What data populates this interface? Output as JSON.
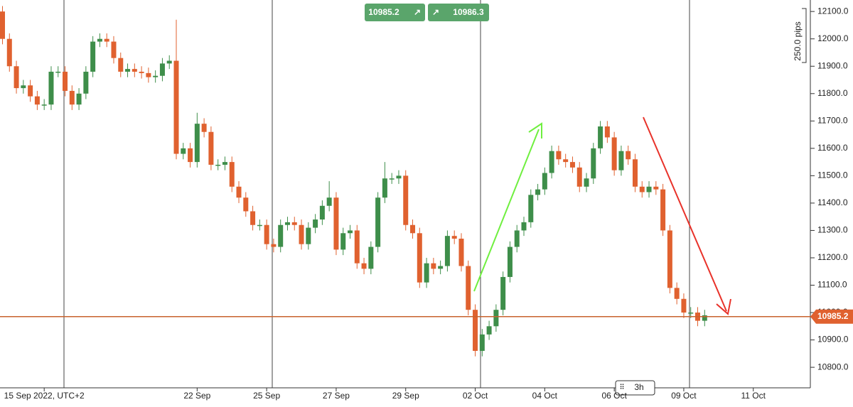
{
  "chart_data": {
    "type": "candlestick",
    "categories": [
      null,
      null,
      null,
      null,
      null,
      null,
      "15 Sep 2022, UTC+2",
      null,
      null,
      null,
      null,
      null,
      null,
      null,
      null,
      null,
      null,
      null,
      null,
      null,
      null,
      null,
      null,
      null,
      null,
      null,
      null,
      null,
      "22 Sep",
      null,
      null,
      null,
      null,
      null,
      null,
      null,
      null,
      null,
      "25 Sep",
      null,
      null,
      null,
      null,
      null,
      null,
      null,
      null,
      null,
      "27 Sep",
      null,
      null,
      null,
      null,
      null,
      null,
      null,
      null,
      null,
      "29 Sep",
      null,
      null,
      null,
      null,
      null,
      null,
      null,
      null,
      null,
      "02 Oct",
      null,
      null,
      null,
      null,
      null,
      null,
      null,
      null,
      null,
      "04 Oct",
      null,
      null,
      null,
      null,
      null,
      null,
      null,
      null,
      null,
      "06 Oct",
      null,
      null,
      null,
      null,
      null,
      null,
      null,
      null,
      null,
      "09 Oct",
      null,
      null,
      null,
      null,
      null,
      null,
      null,
      null,
      null,
      "11 Oct",
      null
    ],
    "open": [
      12100,
      12000,
      11900,
      11820,
      11830,
      11790,
      11760,
      11760,
      11880,
      11880,
      11810,
      11760,
      11800,
      11880,
      11990,
      12000,
      11990,
      11930,
      11880,
      11890,
      11880,
      11875,
      11860,
      11865,
      11910,
      11920,
      11580,
      11600,
      11550,
      11690,
      11660,
      11540,
      11540,
      11550,
      11460,
      11420,
      11370,
      11320,
      11320,
      11250,
      11240,
      11320,
      11330,
      11320,
      11250,
      11310,
      11340,
      11390,
      11420,
      11230,
      11290,
      11300,
      11180,
      11160,
      11240,
      11420,
      11490,
      11490,
      11500,
      11320,
      11290,
      11110,
      11180,
      11160,
      11170,
      11280,
      11270,
      11170,
      11010,
      10860,
      10920,
      10950,
      11010,
      11130,
      11240,
      11300,
      11330,
      11430,
      11450,
      11510,
      11590,
      11560,
      11550,
      11530,
      11460,
      11490,
      11600,
      11680,
      11640,
      11520,
      11590,
      11560,
      11460,
      11440,
      11460,
      11450,
      11300,
      11090,
      11050,
      11000,
      11000,
      10970,
      null,
      null,
      null,
      null,
      null,
      null,
      null,
      null
    ],
    "high": [
      12120,
      12020,
      11920,
      11850,
      11850,
      11810,
      11780,
      11900,
      11900,
      11900,
      11830,
      11820,
      11900,
      12010,
      12020,
      12020,
      12010,
      11950,
      11910,
      11910,
      11900,
      11895,
      11885,
      11930,
      11940,
      12070,
      11620,
      11620,
      11730,
      11710,
      11680,
      11560,
      11570,
      11570,
      11480,
      11440,
      11390,
      11340,
      11340,
      11270,
      11340,
      11350,
      11350,
      11340,
      11330,
      11360,
      11410,
      11480,
      11440,
      11310,
      11320,
      11320,
      11200,
      11260,
      11440,
      11550,
      11510,
      11520,
      11520,
      11340,
      11310,
      11200,
      11200,
      11190,
      11300,
      11300,
      11290,
      11190,
      11030,
      10940,
      10970,
      11030,
      11150,
      11260,
      11320,
      11350,
      11450,
      11470,
      11530,
      11610,
      11610,
      11580,
      11570,
      11550,
      11510,
      11620,
      11700,
      11700,
      11660,
      11610,
      11610,
      11580,
      11480,
      11480,
      11480,
      11470,
      11320,
      11110,
      11070,
      11020,
      11020,
      11010,
      null,
      null,
      null,
      null,
      null,
      null,
      null,
      null
    ],
    "low": [
      11980,
      11880,
      11800,
      11800,
      11770,
      11740,
      11740,
      11740,
      11860,
      11790,
      11740,
      11740,
      11780,
      11860,
      11970,
      11970,
      11910,
      11860,
      11860,
      11860,
      11855,
      11840,
      11840,
      11845,
      11890,
      11560,
      11560,
      11530,
      11530,
      11640,
      11520,
      11520,
      11520,
      11440,
      11400,
      11350,
      11300,
      11300,
      11230,
      11220,
      11220,
      11300,
      11300,
      11230,
      11230,
      11290,
      11320,
      11370,
      11210,
      11210,
      11270,
      11160,
      11140,
      11140,
      11220,
      11400,
      11470,
      11470,
      11300,
      11270,
      11090,
      11090,
      11140,
      11140,
      11150,
      11250,
      11150,
      10990,
      10840,
      10840,
      10900,
      10930,
      10990,
      11110,
      11220,
      11280,
      11310,
      11410,
      11430,
      11490,
      11540,
      11530,
      11510,
      11440,
      11440,
      11470,
      11580,
      11620,
      11500,
      11500,
      11540,
      11440,
      11420,
      11420,
      11430,
      11280,
      11070,
      11030,
      10980,
      10980,
      10950,
      10950,
      null,
      null,
      null,
      null,
      null,
      null,
      null,
      null
    ],
    "close": [
      12000,
      11900,
      11820,
      11830,
      11790,
      11760,
      11760,
      11880,
      11880,
      11810,
      11760,
      11800,
      11880,
      11990,
      12000,
      11990,
      11930,
      11880,
      11890,
      11880,
      11875,
      11860,
      11865,
      11910,
      11920,
      11580,
      11600,
      11550,
      11690,
      11660,
      11540,
      11540,
      11550,
      11460,
      11420,
      11370,
      11320,
      11320,
      11250,
      11240,
      11320,
      11330,
      11320,
      11250,
      11310,
      11340,
      11390,
      11420,
      11230,
      11290,
      11300,
      11180,
      11160,
      11240,
      11420,
      11490,
      11490,
      11500,
      11320,
      11290,
      11110,
      11180,
      11160,
      11170,
      11280,
      11270,
      11170,
      11010,
      10860,
      10920,
      10950,
      11010,
      11130,
      11240,
      11300,
      11330,
      11430,
      11450,
      11510,
      11590,
      11560,
      11550,
      11530,
      11460,
      11490,
      11600,
      11680,
      11640,
      11520,
      11590,
      11560,
      11460,
      11440,
      11460,
      11450,
      11300,
      11090,
      11050,
      11000,
      11000,
      10970,
      10990,
      null,
      null,
      null,
      null,
      null,
      null,
      null,
      null
    ],
    "up_color": "#3e8e4a",
    "down_color": "#e0612f",
    "ylim": [
      10725,
      12142
    ],
    "yticks": [
      {
        "value": 10800,
        "label": "10800.0"
      },
      {
        "value": 10900,
        "label": "10900.0"
      },
      {
        "value": 11000,
        "label": "11000.0"
      },
      {
        "value": 11100,
        "label": "11100.0"
      },
      {
        "value": 11200,
        "label": "11200.0"
      },
      {
        "value": 11300,
        "label": "11300.0"
      },
      {
        "value": 11400,
        "label": "11400.0"
      },
      {
        "value": 11500,
        "label": "11500.0"
      },
      {
        "value": 11600,
        "label": "11600.0"
      },
      {
        "value": 11700,
        "label": "11700.0"
      },
      {
        "value": 11800,
        "label": "11800.0"
      },
      {
        "value": 11900,
        "label": "11900.0"
      },
      {
        "value": 12000,
        "label": "12000.0"
      },
      {
        "value": 12100,
        "label": "12100.0"
      }
    ],
    "current_price": 10985.2,
    "bid": 10985.2,
    "ask": 10986.3,
    "range_label": "250.0 pips",
    "timeframe": "3h"
  }
}
